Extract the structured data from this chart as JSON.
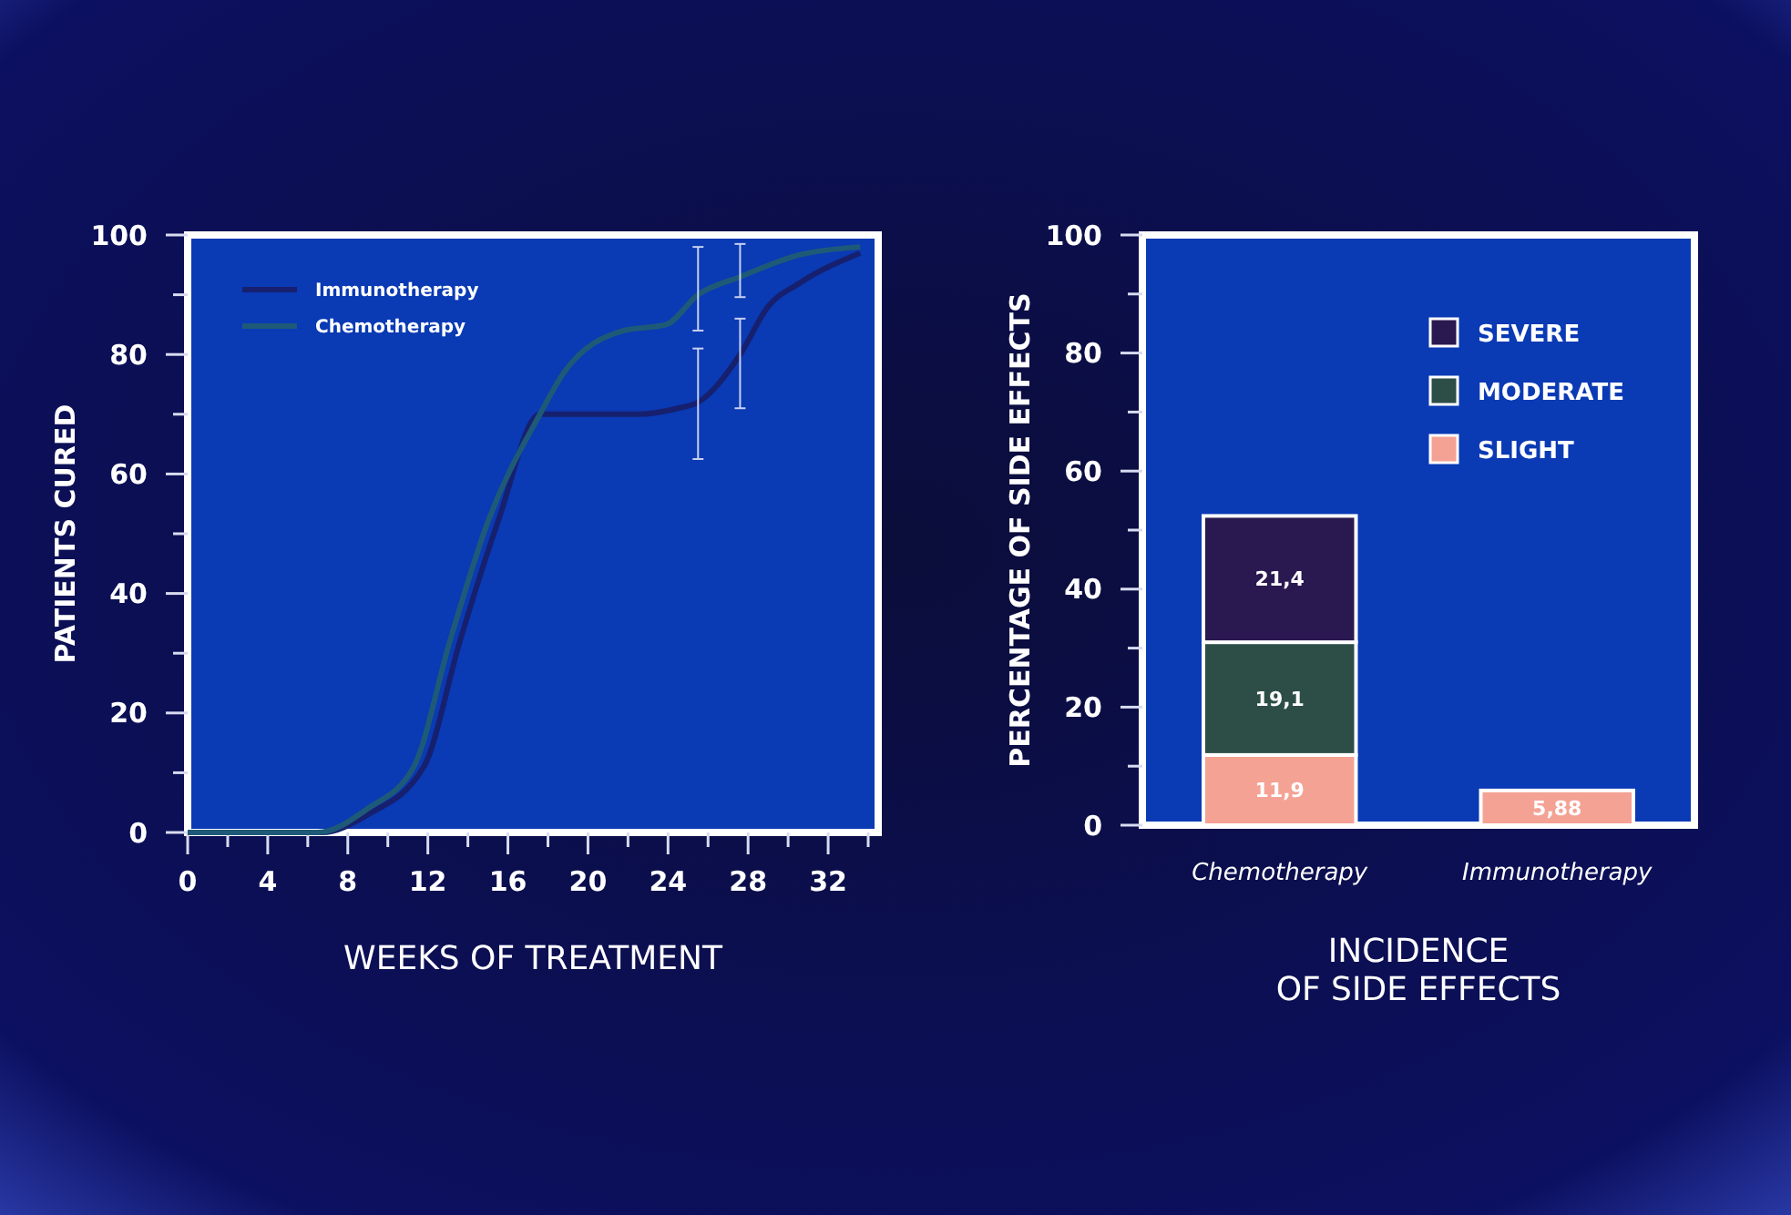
{
  "chart_data": [
    {
      "type": "line",
      "xlabel": "WEEKS OF TREATMENT",
      "ylabel": "PATIENTS CURED",
      "xlim": [
        0,
        34.5
      ],
      "ylim": [
        0,
        100
      ],
      "xticks": [
        0,
        {
          "value": 2,
          "label": null
        },
        4,
        {
          "value": 6,
          "label": null
        },
        8,
        {
          "value": 10,
          "label": null
        },
        12,
        {
          "value": 14,
          "label": null
        },
        16,
        {
          "value": 18,
          "label": null
        },
        20,
        {
          "value": 22,
          "label": null
        },
        24,
        {
          "value": 26,
          "label": null
        },
        28,
        {
          "value": 30,
          "label": null
        },
        32,
        {
          "value": 34,
          "label": null
        }
      ],
      "yticks": [
        0,
        {
          "value": 10,
          "label": null
        },
        20,
        {
          "value": 30,
          "label": null
        },
        40,
        {
          "value": 50,
          "label": null
        },
        60,
        {
          "value": 70,
          "label": null
        },
        80,
        {
          "value": 90,
          "label": null
        },
        100
      ],
      "grid": false,
      "legend": "top left",
      "marker": "none",
      "line_style": "solid",
      "series": [
        {
          "name": "Immunotherapy",
          "color": "#16206e",
          "x": [
            0,
            6.7,
            9,
            11.8,
            13.6,
            15.5,
            17.6,
            20,
            22.5,
            24.5,
            25.5,
            27.6,
            29,
            30.6,
            33.6
          ],
          "values": [
            0,
            0,
            3,
            11,
            32,
            52,
            70,
            70,
            70,
            71,
            72,
            80,
            88,
            92,
            97
          ],
          "errors": [
            null,
            null,
            null,
            null,
            null,
            null,
            null,
            null,
            null,
            null,
            [
              62.5,
              81
            ],
            [
              71,
              86
            ],
            null,
            null,
            null
          ]
        },
        {
          "name": "Chemotherapy",
          "color": "#1e5a78",
          "x": [
            0,
            6.5,
            9,
            11.3,
            13.1,
            15,
            17.6,
            18.8,
            21.8,
            23.9,
            25.5,
            27.6,
            30.6,
            33.6
          ],
          "values": [
            0,
            0,
            4,
            11,
            32,
            52,
            70,
            77,
            84,
            85,
            90,
            93,
            96.7,
            98
          ],
          "errors": [
            null,
            null,
            null,
            null,
            null,
            null,
            null,
            null,
            null,
            null,
            [
              84,
              98
            ],
            [
              89.6,
              98.5
            ],
            null,
            null
          ]
        }
      ]
    },
    {
      "type": "bar",
      "stacked": true,
      "ylabel": "PERCENTAGE OF SIDE EFFECTS",
      "xlabel": "INCIDENCE\nOF SIDE EFFECTS",
      "categories": [
        "Chemotherapy",
        "Immunotherapy"
      ],
      "ylim": [
        0,
        100
      ],
      "yticks": [
        0,
        {
          "value": 10,
          "label": null
        },
        20,
        {
          "value": 30,
          "label": null
        },
        40,
        {
          "value": 50,
          "label": null
        },
        60,
        {
          "value": 70,
          "label": null
        },
        80,
        {
          "value": 90,
          "label": null
        },
        100
      ],
      "grid": false,
      "legend": "top right",
      "series": [
        {
          "name": "SLIGHT",
          "color": "#f4a294",
          "values": [
            11.9,
            5.88
          ],
          "value_labels": [
            "11,9",
            "5,88"
          ]
        },
        {
          "name": "MODERATE",
          "color": "#2c4e46",
          "values": [
            19.1,
            null
          ],
          "value_labels": [
            "19,1",
            null
          ]
        },
        {
          "name": "SEVERE",
          "color": "#2a1850",
          "values": [
            21.4,
            null
          ],
          "value_labels": [
            "21,4",
            null
          ]
        }
      ]
    }
  ]
}
